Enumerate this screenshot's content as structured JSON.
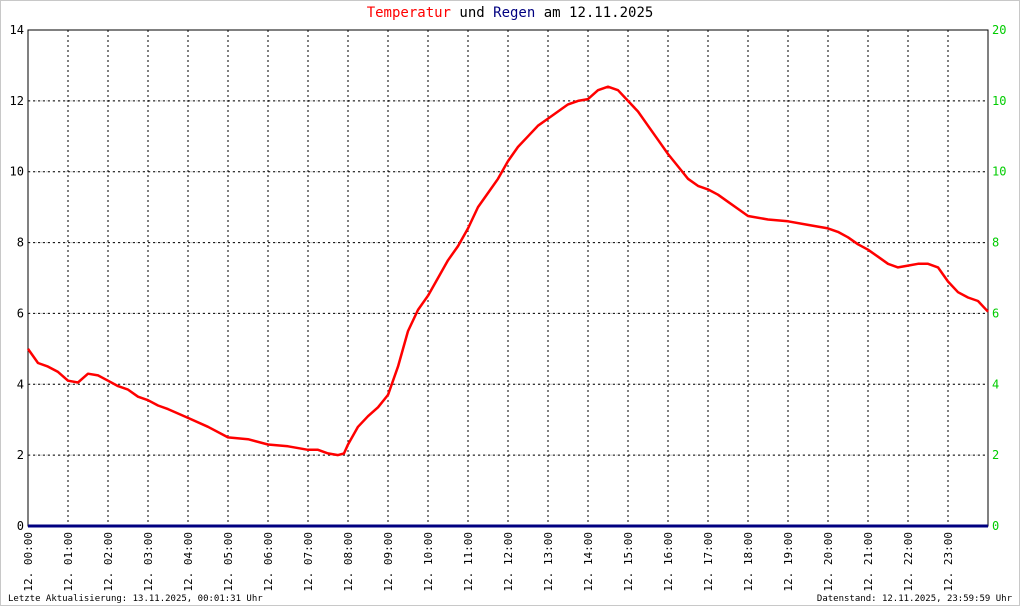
{
  "title": {
    "part1": "Temperatur",
    "part2": " und ",
    "part3": "Regen",
    "part4": " am 12.11.2025"
  },
  "footer": {
    "left": "Letzte Aktualisierung: 13.11.2025, 00:01:31 Uhr",
    "right": "Datenstand: 12.11.2025, 23:59:59 Uhr"
  },
  "colors": {
    "temperature": "#ff0000",
    "rain": "#000080",
    "right_axis": "#00cc00",
    "grid": "#000000"
  },
  "chart_data": {
    "type": "line",
    "x_ticks": [
      "12. 00:00",
      "12. 01:00",
      "12. 02:00",
      "12. 03:00",
      "12. 04:00",
      "12. 05:00",
      "12. 06:00",
      "12. 07:00",
      "12. 08:00",
      "12. 09:00",
      "12. 10:00",
      "12. 11:00",
      "12. 12:00",
      "12. 13:00",
      "12. 14:00",
      "12. 15:00",
      "12. 16:00",
      "12. 17:00",
      "12. 18:00",
      "12. 19:00",
      "12. 20:00",
      "12. 21:00",
      "12. 22:00",
      "12. 23:00"
    ],
    "xlim": [
      0,
      24
    ],
    "y_left": {
      "min": 0,
      "max": 14,
      "ticks": [
        "0",
        "2",
        "4",
        "6",
        "8",
        "10",
        "12",
        "14"
      ]
    },
    "y_right": {
      "min": 0,
      "max": 20,
      "ticks": [
        "0",
        "2",
        "4",
        "6",
        "8",
        "10",
        "10",
        "20"
      ]
    },
    "grid": true,
    "series": [
      {
        "name": "Temperatur",
        "axis": "left",
        "points": [
          [
            0.0,
            5.0
          ],
          [
            0.25,
            4.6
          ],
          [
            0.5,
            4.5
          ],
          [
            0.75,
            4.35
          ],
          [
            1.0,
            4.1
          ],
          [
            1.25,
            4.05
          ],
          [
            1.5,
            4.3
          ],
          [
            1.75,
            4.25
          ],
          [
            2.0,
            4.1
          ],
          [
            2.25,
            3.95
          ],
          [
            2.5,
            3.85
          ],
          [
            2.75,
            3.65
          ],
          [
            3.0,
            3.55
          ],
          [
            3.25,
            3.4
          ],
          [
            3.5,
            3.3
          ],
          [
            4.0,
            3.05
          ],
          [
            4.5,
            2.8
          ],
          [
            5.0,
            2.5
          ],
          [
            5.5,
            2.45
          ],
          [
            6.0,
            2.3
          ],
          [
            6.5,
            2.25
          ],
          [
            7.0,
            2.15
          ],
          [
            7.25,
            2.15
          ],
          [
            7.5,
            2.05
          ],
          [
            7.75,
            2.0
          ],
          [
            7.9,
            2.05
          ],
          [
            8.0,
            2.3
          ],
          [
            8.25,
            2.8
          ],
          [
            8.5,
            3.1
          ],
          [
            8.75,
            3.35
          ],
          [
            9.0,
            3.7
          ],
          [
            9.25,
            4.5
          ],
          [
            9.5,
            5.5
          ],
          [
            9.75,
            6.1
          ],
          [
            10.0,
            6.5
          ],
          [
            10.25,
            7.0
          ],
          [
            10.5,
            7.5
          ],
          [
            10.75,
            7.9
          ],
          [
            11.0,
            8.4
          ],
          [
            11.25,
            9.0
          ],
          [
            11.5,
            9.4
          ],
          [
            11.75,
            9.8
          ],
          [
            12.0,
            10.3
          ],
          [
            12.25,
            10.7
          ],
          [
            12.5,
            11.0
          ],
          [
            12.75,
            11.3
          ],
          [
            13.0,
            11.5
          ],
          [
            13.25,
            11.7
          ],
          [
            13.5,
            11.9
          ],
          [
            13.75,
            12.0
          ],
          [
            14.0,
            12.05
          ],
          [
            14.25,
            12.3
          ],
          [
            14.5,
            12.4
          ],
          [
            14.75,
            12.3
          ],
          [
            15.0,
            12.0
          ],
          [
            15.25,
            11.7
          ],
          [
            15.5,
            11.3
          ],
          [
            15.75,
            10.9
          ],
          [
            16.0,
            10.5
          ],
          [
            16.25,
            10.15
          ],
          [
            16.5,
            9.8
          ],
          [
            16.75,
            9.6
          ],
          [
            17.0,
            9.5
          ],
          [
            17.25,
            9.35
          ],
          [
            17.5,
            9.15
          ],
          [
            17.75,
            8.95
          ],
          [
            18.0,
            8.75
          ],
          [
            18.5,
            8.65
          ],
          [
            19.0,
            8.6
          ],
          [
            19.5,
            8.5
          ],
          [
            20.0,
            8.4
          ],
          [
            20.25,
            8.3
          ],
          [
            20.5,
            8.15
          ],
          [
            20.75,
            7.95
          ],
          [
            21.0,
            7.8
          ],
          [
            21.25,
            7.6
          ],
          [
            21.5,
            7.4
          ],
          [
            21.75,
            7.3
          ],
          [
            22.0,
            7.35
          ],
          [
            22.25,
            7.4
          ],
          [
            22.5,
            7.4
          ],
          [
            22.75,
            7.3
          ],
          [
            23.0,
            6.9
          ],
          [
            23.25,
            6.6
          ],
          [
            23.5,
            6.45
          ],
          [
            23.75,
            6.35
          ],
          [
            24.0,
            6.05
          ]
        ]
      },
      {
        "name": "Regen",
        "axis": "right",
        "points": [
          [
            0,
            0
          ],
          [
            24,
            0
          ]
        ]
      }
    ]
  }
}
